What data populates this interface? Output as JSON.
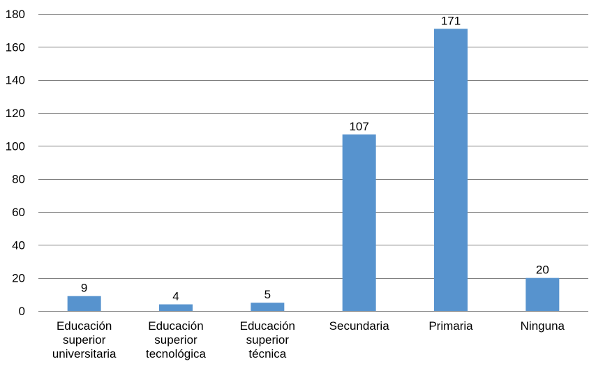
{
  "chart_data": {
    "type": "bar",
    "categories": [
      [
        "Educación",
        "superior",
        "universitaria"
      ],
      [
        "Educación",
        "superior",
        "tecnológica"
      ],
      [
        "Educación",
        "superior",
        "técnica"
      ],
      [
        "Secundaria"
      ],
      [
        "Primaria"
      ],
      [
        "Ninguna"
      ]
    ],
    "values": [
      9,
      4,
      5,
      107,
      171,
      20
    ],
    "data_labels": [
      "9",
      "4",
      "5",
      "107",
      "171",
      "20"
    ],
    "ylim": [
      0,
      180
    ],
    "yticks": [
      0,
      20,
      40,
      60,
      80,
      100,
      120,
      140,
      160,
      180
    ],
    "ytick_labels": [
      "0",
      "20",
      "40",
      "60",
      "80",
      "100",
      "120",
      "140",
      "160",
      "180"
    ],
    "title": "",
    "xlabel": "",
    "ylabel": "",
    "grid": true,
    "legend": "none",
    "colors": {
      "bar": "#5793CE",
      "grid": "#7F7F7F"
    }
  }
}
